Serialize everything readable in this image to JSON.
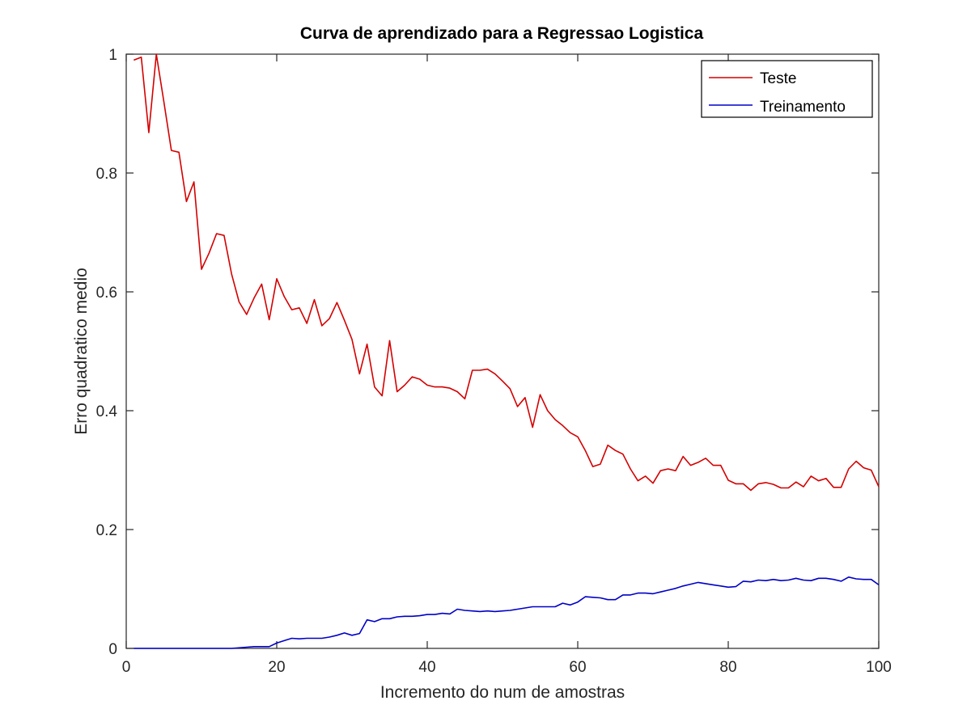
{
  "chart_data": {
    "type": "line",
    "title": "Curva de aprendizado para a Regressao Logistica",
    "xlabel": "Incremento do num de amostras",
    "ylabel": "Erro quadratico medio",
    "xlim": [
      0,
      100
    ],
    "ylim": [
      0,
      1
    ],
    "xticks": [
      "0",
      "20",
      "40",
      "60",
      "80",
      "100"
    ],
    "yticks": [
      "0",
      "0.2",
      "0.4",
      "0.6",
      "0.8",
      "1"
    ],
    "grid": false,
    "legend_position": "top-right",
    "series": [
      {
        "name": "Teste",
        "color": "#d40000",
        "x": [
          1,
          2,
          3,
          4,
          5,
          6,
          7,
          8,
          9,
          10,
          11,
          12,
          13,
          14,
          15,
          16,
          17,
          18,
          19,
          20,
          21,
          22,
          23,
          24,
          25,
          26,
          27,
          28,
          29,
          30,
          31,
          32,
          33,
          34,
          35,
          36,
          37,
          38,
          39,
          40,
          41,
          42,
          43,
          44,
          45,
          46,
          47,
          48,
          49,
          50,
          51,
          52,
          53,
          54,
          55,
          56,
          57,
          58,
          59,
          60,
          61,
          62,
          63,
          64,
          65,
          66,
          67,
          68,
          69,
          70,
          71,
          72,
          73,
          74,
          75,
          76,
          77,
          78,
          79,
          80,
          81,
          82,
          83,
          84,
          85,
          86,
          87,
          88,
          89,
          90,
          91,
          92,
          93,
          94,
          95,
          96,
          97,
          98,
          99,
          100
        ],
        "values": [
          0.99,
          0.995,
          0.868,
          1.0,
          0.92,
          0.838,
          0.835,
          0.752,
          0.785,
          0.638,
          0.665,
          0.698,
          0.695,
          0.63,
          0.583,
          0.562,
          0.59,
          0.613,
          0.553,
          0.622,
          0.592,
          0.57,
          0.573,
          0.547,
          0.587,
          0.543,
          0.555,
          0.582,
          0.552,
          0.52,
          0.462,
          0.512,
          0.44,
          0.425,
          0.518,
          0.432,
          0.443,
          0.457,
          0.453,
          0.443,
          0.44,
          0.44,
          0.438,
          0.432,
          0.42,
          0.468,
          0.468,
          0.47,
          0.462,
          0.45,
          0.437,
          0.407,
          0.422,
          0.372,
          0.427,
          0.4,
          0.385,
          0.375,
          0.363,
          0.356,
          0.333,
          0.306,
          0.31,
          0.342,
          0.333,
          0.327,
          0.302,
          0.282,
          0.29,
          0.278,
          0.299,
          0.302,
          0.299,
          0.323,
          0.308,
          0.313,
          0.32,
          0.308,
          0.308,
          0.283,
          0.277,
          0.277,
          0.266,
          0.277,
          0.279,
          0.276,
          0.27,
          0.27,
          0.28,
          0.272,
          0.29,
          0.282,
          0.286,
          0.271,
          0.271,
          0.302,
          0.315,
          0.304,
          0.3,
          0.272
        ]
      },
      {
        "name": "Treinamento",
        "color": "#0000c8",
        "x": [
          1,
          2,
          3,
          4,
          5,
          6,
          7,
          8,
          9,
          10,
          11,
          12,
          13,
          14,
          15,
          16,
          17,
          18,
          19,
          20,
          21,
          22,
          23,
          24,
          25,
          26,
          27,
          28,
          29,
          30,
          31,
          32,
          33,
          34,
          35,
          36,
          37,
          38,
          39,
          40,
          41,
          42,
          43,
          44,
          45,
          46,
          47,
          48,
          49,
          50,
          51,
          52,
          53,
          54,
          55,
          56,
          57,
          58,
          59,
          60,
          61,
          62,
          63,
          64,
          65,
          66,
          67,
          68,
          69,
          70,
          71,
          72,
          73,
          74,
          75,
          76,
          77,
          78,
          79,
          80,
          81,
          82,
          83,
          84,
          85,
          86,
          87,
          88,
          89,
          90,
          91,
          92,
          93,
          94,
          95,
          96,
          97,
          98,
          99,
          100
        ],
        "values": [
          0,
          0,
          0,
          0,
          0,
          0,
          0,
          0,
          0,
          0,
          0,
          0,
          0,
          0,
          0.001,
          0.002,
          0.003,
          0.003,
          0.003,
          0.009,
          0.013,
          0.017,
          0.016,
          0.017,
          0.017,
          0.017,
          0.019,
          0.022,
          0.026,
          0.022,
          0.025,
          0.048,
          0.045,
          0.05,
          0.05,
          0.053,
          0.054,
          0.054,
          0.055,
          0.057,
          0.057,
          0.059,
          0.058,
          0.066,
          0.064,
          0.063,
          0.062,
          0.063,
          0.062,
          0.063,
          0.064,
          0.066,
          0.068,
          0.07,
          0.07,
          0.07,
          0.07,
          0.076,
          0.073,
          0.078,
          0.087,
          0.086,
          0.085,
          0.082,
          0.082,
          0.09,
          0.09,
          0.093,
          0.093,
          0.092,
          0.095,
          0.098,
          0.101,
          0.105,
          0.108,
          0.111,
          0.109,
          0.107,
          0.105,
          0.103,
          0.104,
          0.113,
          0.112,
          0.115,
          0.114,
          0.116,
          0.114,
          0.115,
          0.118,
          0.115,
          0.114,
          0.118,
          0.118,
          0.116,
          0.113,
          0.12,
          0.117,
          0.116,
          0.116,
          0.107
        ]
      }
    ]
  }
}
